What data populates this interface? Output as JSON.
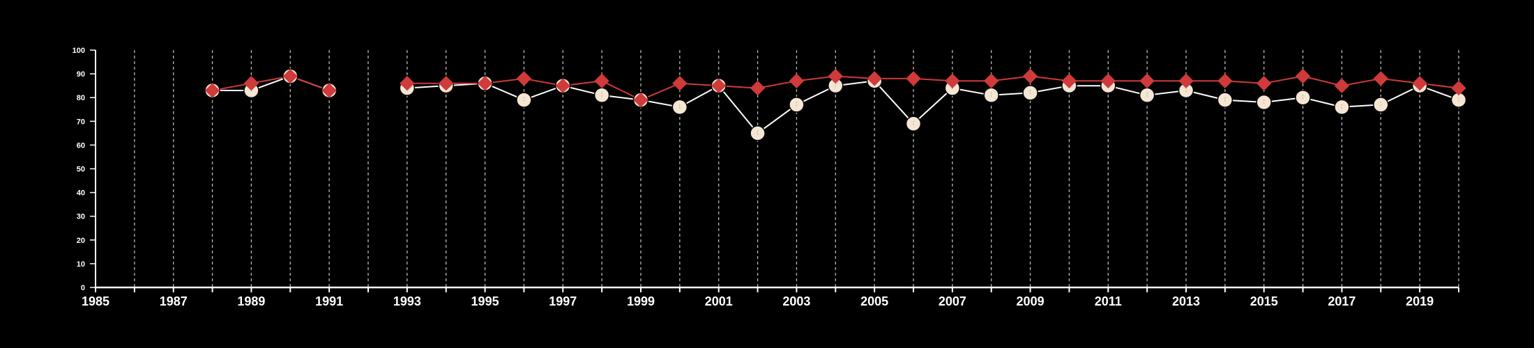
{
  "chart_data": {
    "type": "line",
    "title": "",
    "xlabel": "",
    "ylabel": "",
    "xlim": [
      1985,
      2020
    ],
    "ylim": [
      0,
      100
    ],
    "x_ticks": [
      1985,
      1987,
      1989,
      1991,
      1993,
      1995,
      1997,
      1999,
      2001,
      2003,
      2005,
      2007,
      2009,
      2011,
      2013,
      2015,
      2017,
      2019
    ],
    "x_tick_labels": [
      "1985",
      "1987",
      "1989",
      "1991",
      "1993",
      "1995",
      "1997",
      "1999",
      "2001",
      "2003",
      "2005",
      "2007",
      "2009",
      "2011",
      "2013",
      "2015",
      "2017",
      "2019"
    ],
    "y_ticks": [
      0,
      10,
      20,
      30,
      40,
      50,
      60,
      70,
      80,
      90,
      100
    ],
    "y_tick_labels": [
      "0",
      "10",
      "20",
      "30",
      "40",
      "50",
      "60",
      "70",
      "80",
      "90",
      "100"
    ],
    "vertical_grid": "dashed, every year",
    "legend": "none",
    "series": [
      {
        "marker": "circle",
        "color": "#ffffff",
        "fill": "#f5e6d3",
        "points": [
          [
            1988,
            83
          ],
          [
            1989,
            83
          ],
          [
            1990,
            89
          ],
          [
            1991,
            83
          ],
          [
            1993,
            84
          ],
          [
            1994,
            85
          ],
          [
            1995,
            86
          ],
          [
            1996,
            79
          ],
          [
            1997,
            85
          ],
          [
            1998,
            81
          ],
          [
            1999,
            79
          ],
          [
            2000,
            76
          ],
          [
            2001,
            85
          ],
          [
            2002,
            65
          ],
          [
            2003,
            77
          ],
          [
            2004,
            85
          ],
          [
            2005,
            87
          ],
          [
            2006,
            69
          ],
          [
            2007,
            84
          ],
          [
            2008,
            81
          ],
          [
            2009,
            82
          ],
          [
            2010,
            85
          ],
          [
            2011,
            85
          ],
          [
            2012,
            81
          ],
          [
            2013,
            83
          ],
          [
            2014,
            79
          ],
          [
            2015,
            78
          ],
          [
            2016,
            80
          ],
          [
            2017,
            76
          ],
          [
            2018,
            77
          ],
          [
            2019,
            85
          ],
          [
            2020,
            79
          ]
        ]
      },
      {
        "marker": "diamond",
        "color": "#d03a3a",
        "fill": "#d03a3a",
        "points": [
          [
            1988,
            83
          ],
          [
            1989,
            86
          ],
          [
            1990,
            89
          ],
          [
            1991,
            83
          ],
          [
            1993,
            86
          ],
          [
            1994,
            86
          ],
          [
            1995,
            86
          ],
          [
            1996,
            88
          ],
          [
            1997,
            85
          ],
          [
            1998,
            87
          ],
          [
            1999,
            79
          ],
          [
            2000,
            86
          ],
          [
            2001,
            85
          ],
          [
            2002,
            84
          ],
          [
            2003,
            87
          ],
          [
            2004,
            89
          ],
          [
            2005,
            88
          ],
          [
            2006,
            88
          ],
          [
            2007,
            87
          ],
          [
            2008,
            87
          ],
          [
            2009,
            89
          ],
          [
            2010,
            87
          ],
          [
            2011,
            87
          ],
          [
            2012,
            87
          ],
          [
            2013,
            87
          ],
          [
            2014,
            87
          ],
          [
            2015,
            86
          ],
          [
            2016,
            89
          ],
          [
            2017,
            85
          ],
          [
            2018,
            88
          ],
          [
            2019,
            86
          ],
          [
            2020,
            84
          ]
        ]
      }
    ]
  },
  "colors": {
    "background": "#000000",
    "axis": "#ffffff",
    "grid": "#bbbbbb"
  }
}
